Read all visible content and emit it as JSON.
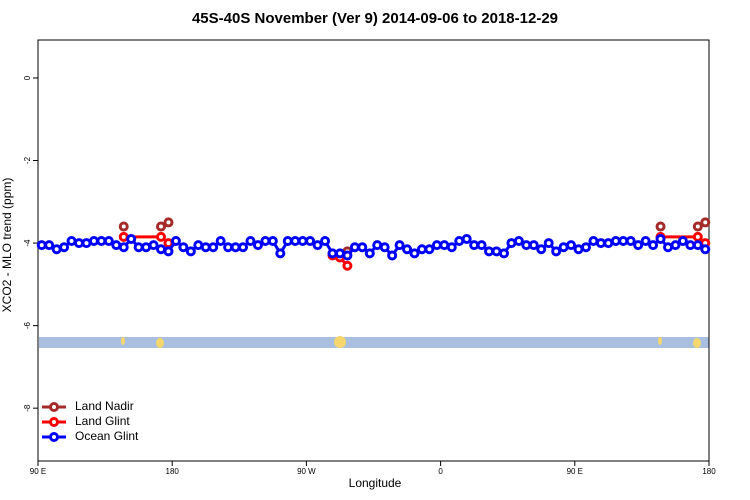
{
  "chart_data": {
    "type": "line",
    "title": "45S-40S November (Ver 9)   2014-09-06 to 2018-12-29",
    "x_label": "Longitude",
    "y_label": "XCO2 - MLO trend (ppm)",
    "xlim": [
      90,
      540
    ],
    "ylim": [
      -9.28,
      0.92
    ],
    "xticks": [
      {
        "value": 90,
        "label": "90 E"
      },
      180,
      {
        "value": 270,
        "label": "90 W"
      },
      {
        "value": 360,
        "label": "0"
      },
      {
        "value": 450,
        "label": "90 E"
      },
      {
        "value": 540,
        "label": "180"
      }
    ],
    "yticks": [
      0,
      -2,
      -4,
      -6,
      -8
    ],
    "legend": "bottom-left",
    "series": [
      {
        "name": "Land Nadir",
        "color": "#a52a2a",
        "x": [
          147.5,
          160,
          172.5,
          177.5,
          240,
          297.5,
          400,
          507.5,
          520,
          532.5,
          537.5
        ],
        "values": [
          -3.6,
          null,
          -3.6,
          -3.5,
          null,
          -4.2,
          null,
          -3.6,
          null,
          -3.6,
          -3.5
        ]
      },
      {
        "name": "Land Glint",
        "color": "#ff0000",
        "x": [
          147.5,
          172.5,
          177.5,
          240,
          287.5,
          292.5,
          297.5,
          400,
          507.5,
          532.5,
          537.5
        ],
        "values": [
          -3.85,
          -3.85,
          -4.0,
          null,
          -4.3,
          -4.35,
          -4.55,
          null,
          -3.85,
          -3.85,
          -4.0
        ]
      },
      {
        "name": "Ocean Glint",
        "color": "#0000ff",
        "x": [
          92.5,
          97.5,
          102.5,
          107.5,
          112.5,
          117.5,
          122.5,
          127.5,
          132.5,
          137.5,
          142.5,
          147.5,
          152.5,
          157.5,
          162.5,
          167.5,
          172.5,
          177.5,
          182.5,
          187.5,
          192.5,
          197.5,
          202.5,
          207.5,
          212.5,
          217.5,
          222.5,
          227.5,
          232.5,
          237.5,
          242.5,
          247.5,
          252.5,
          257.5,
          262.5,
          267.5,
          272.5,
          277.5,
          282.5,
          287.5,
          292.5,
          297.5,
          302.5,
          307.5,
          312.5,
          317.5,
          322.5,
          327.5,
          332.5,
          337.5,
          342.5,
          347.5,
          352.5,
          357.5,
          362.5,
          367.5,
          372.5,
          377.5,
          382.5,
          387.5,
          392.5,
          397.5,
          402.5,
          407.5,
          412.5,
          417.5,
          422.5,
          427.5,
          432.5,
          437.5,
          442.5,
          447.5,
          452.5,
          457.5,
          462.5,
          467.5,
          472.5,
          477.5,
          482.5,
          487.5,
          492.5,
          497.5,
          502.5,
          507.5,
          512.5,
          517.5,
          522.5,
          527.5,
          532.5,
          537.5
        ],
        "values": [
          -4.05,
          -4.05,
          -4.15,
          -4.1,
          -3.95,
          -4.0,
          -4.0,
          -3.95,
          -3.95,
          -3.95,
          -4.05,
          -4.1,
          -3.9,
          -4.1,
          -4.1,
          -4.05,
          -4.15,
          -4.2,
          -3.95,
          -4.1,
          -4.2,
          -4.05,
          -4.1,
          -4.1,
          -3.95,
          -4.1,
          -4.1,
          -4.1,
          -3.95,
          -4.05,
          -3.95,
          -3.95,
          -4.25,
          -3.95,
          -3.95,
          -3.95,
          -3.95,
          -4.05,
          -3.95,
          -4.25,
          -4.25,
          -4.3,
          -4.1,
          -4.1,
          -4.25,
          -4.05,
          -4.1,
          -4.3,
          -4.05,
          -4.15,
          -4.25,
          -4.15,
          -4.15,
          -4.05,
          -4.05,
          -4.1,
          -3.95,
          -3.9,
          -4.05,
          -4.05,
          -4.2,
          -4.2,
          -4.25,
          -4.0,
          -3.95,
          -4.05,
          -4.05,
          -4.15,
          -4.0,
          -4.2,
          -4.1,
          -4.05,
          -4.15,
          -4.1,
          -3.95,
          -4.0,
          -4.0,
          -3.95,
          -3.95,
          -3.95,
          -4.05,
          -3.95,
          -4.05,
          -3.9,
          -4.1,
          -4.05,
          -3.95,
          -4.05,
          -4.05,
          -4.15
        ]
      }
    ]
  }
}
